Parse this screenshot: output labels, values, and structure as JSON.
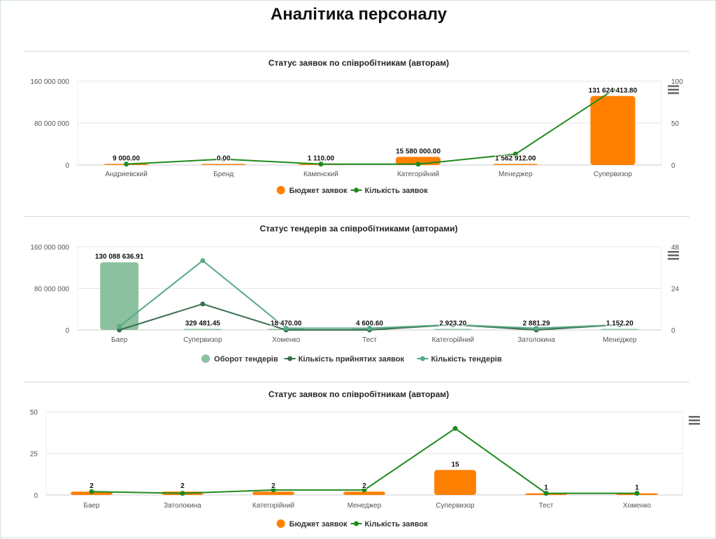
{
  "page_title": "Аналітика персоналу",
  "colors": {
    "orange": "#ff8000",
    "green": "#1e8a1e",
    "bar_green": "#8cc1a0",
    "dark_green": "#3a7050",
    "light_green": "#5aa985"
  },
  "menu_icon": "hamburger-menu-icon",
  "chart_data": [
    {
      "type": "bar+line",
      "title": "Статус заявок по співробітникам (авторам)",
      "categories": [
        "Андриевский",
        "Бренд",
        "Каменский",
        "Категорійний",
        "Менеджер",
        "Супервизор"
      ],
      "ylim_left": [
        0,
        160000000
      ],
      "yticks_left": [
        "0",
        "80 000 000",
        "160 000 000"
      ],
      "ylim_right": [
        0,
        100
      ],
      "yticks_right": [
        "0",
        "50",
        "100"
      ],
      "legend": "bottom",
      "grid": true,
      "series": [
        {
          "name": "Бюджет заявок",
          "type": "bar",
          "axis": "left",
          "color": "#ff8000",
          "values": [
            9000,
            0,
            1110,
            15580000,
            1562912,
            131624413.8
          ],
          "labels": [
            "9 000.00",
            "0.00",
            "1 110.00",
            "15 580 000.00",
            "1 562 912.00",
            "131 624 413.80"
          ]
        },
        {
          "name": "Кількість заявок",
          "type": "line",
          "axis": "right",
          "color": "#1e8a1e",
          "values": [
            1,
            7,
            1,
            1,
            13,
            89
          ]
        }
      ]
    },
    {
      "type": "bar+line",
      "title": "Статус тендерів за співробітниками (авторами)",
      "categories": [
        "Баер",
        "Супервизор",
        "Хоменко",
        "Тест",
        "Категорійний",
        "Затолокина",
        "Менеджер"
      ],
      "ylim_left": [
        0,
        160000000
      ],
      "yticks_left": [
        "0",
        "80 000 000",
        "160 000 000"
      ],
      "ylim_right": [
        0,
        48
      ],
      "yticks_right": [
        "0",
        "24",
        "48"
      ],
      "legend": "bottom",
      "grid": true,
      "series": [
        {
          "name": "Оборот тендерів",
          "type": "bar",
          "axis": "left",
          "color": "#8cc1a0",
          "values": [
            130088636.91,
            329481.45,
            18470,
            4600.6,
            2923.2,
            2881.29,
            1152.2
          ],
          "labels": [
            "130 088 636.91",
            "329 481.45",
            "18 470.00",
            "4 600.60",
            "2 923.20",
            "2 881.29",
            "1 152.20"
          ]
        },
        {
          "name": "Кількість прийнятих заявок",
          "type": "line",
          "axis": "right",
          "color": "#3a7050",
          "values": [
            0,
            15,
            0,
            0,
            3,
            0,
            3
          ]
        },
        {
          "name": "Кількість тендерів",
          "type": "line",
          "axis": "right",
          "color": "#5aa985",
          "values": [
            2,
            40,
            1,
            1,
            3,
            1,
            3
          ]
        }
      ]
    },
    {
      "type": "bar+line",
      "title": "Статус заявок по співробітникам (авторам)",
      "categories": [
        "Баер",
        "Затолокина",
        "Категорійний",
        "Менеджер",
        "Супервизор",
        "Тест",
        "Хоменко"
      ],
      "ylim_left": [
        0,
        50
      ],
      "yticks_left": [
        "0",
        "25",
        "50"
      ],
      "legend": "bottom",
      "grid": true,
      "series": [
        {
          "name": "Бюджет заявок",
          "type": "bar",
          "axis": "left",
          "color": "#ff8000",
          "values": [
            2,
            2,
            2,
            2,
            15,
            1,
            1
          ],
          "labels": [
            "2",
            "2",
            "2",
            "2",
            "15",
            "1",
            "1"
          ]
        },
        {
          "name": "Кількість заявок",
          "type": "line",
          "axis": "left",
          "color": "#1e8a1e",
          "values": [
            2,
            1,
            3,
            3,
            40,
            1,
            1
          ]
        }
      ]
    }
  ]
}
